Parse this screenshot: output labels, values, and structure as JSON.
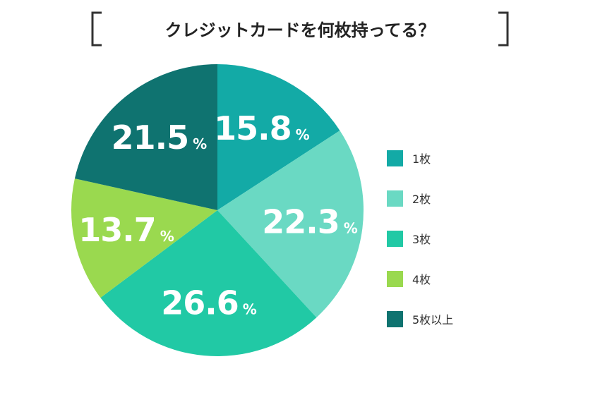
{
  "chart_data": {
    "type": "pie",
    "title": "クレジットカードを何枚持ってる？",
    "unit_symbol": "%",
    "start_angle_deg": 0,
    "direction": "clockwise",
    "legend_position": "right",
    "slices": [
      {
        "label": "1枚",
        "value": 15.8,
        "value_text": "15.8",
        "color": "#13aaa6"
      },
      {
        "label": "2枚",
        "value": 22.3,
        "value_text": "22.3",
        "color": "#6ad9c3"
      },
      {
        "label": "3枚",
        "value": 26.6,
        "value_text": "26.6",
        "color": "#21c9a5"
      },
      {
        "label": "4枚",
        "value": 13.7,
        "value_text": "13.7",
        "color": "#9ad94f"
      },
      {
        "label": "5枚以上",
        "value": 21.5,
        "value_text": "21.5",
        "color": "#0f7370"
      }
    ],
    "label_text_color": "#ffffff",
    "bracket_color": "#333333",
    "title_color": "#222222"
  }
}
